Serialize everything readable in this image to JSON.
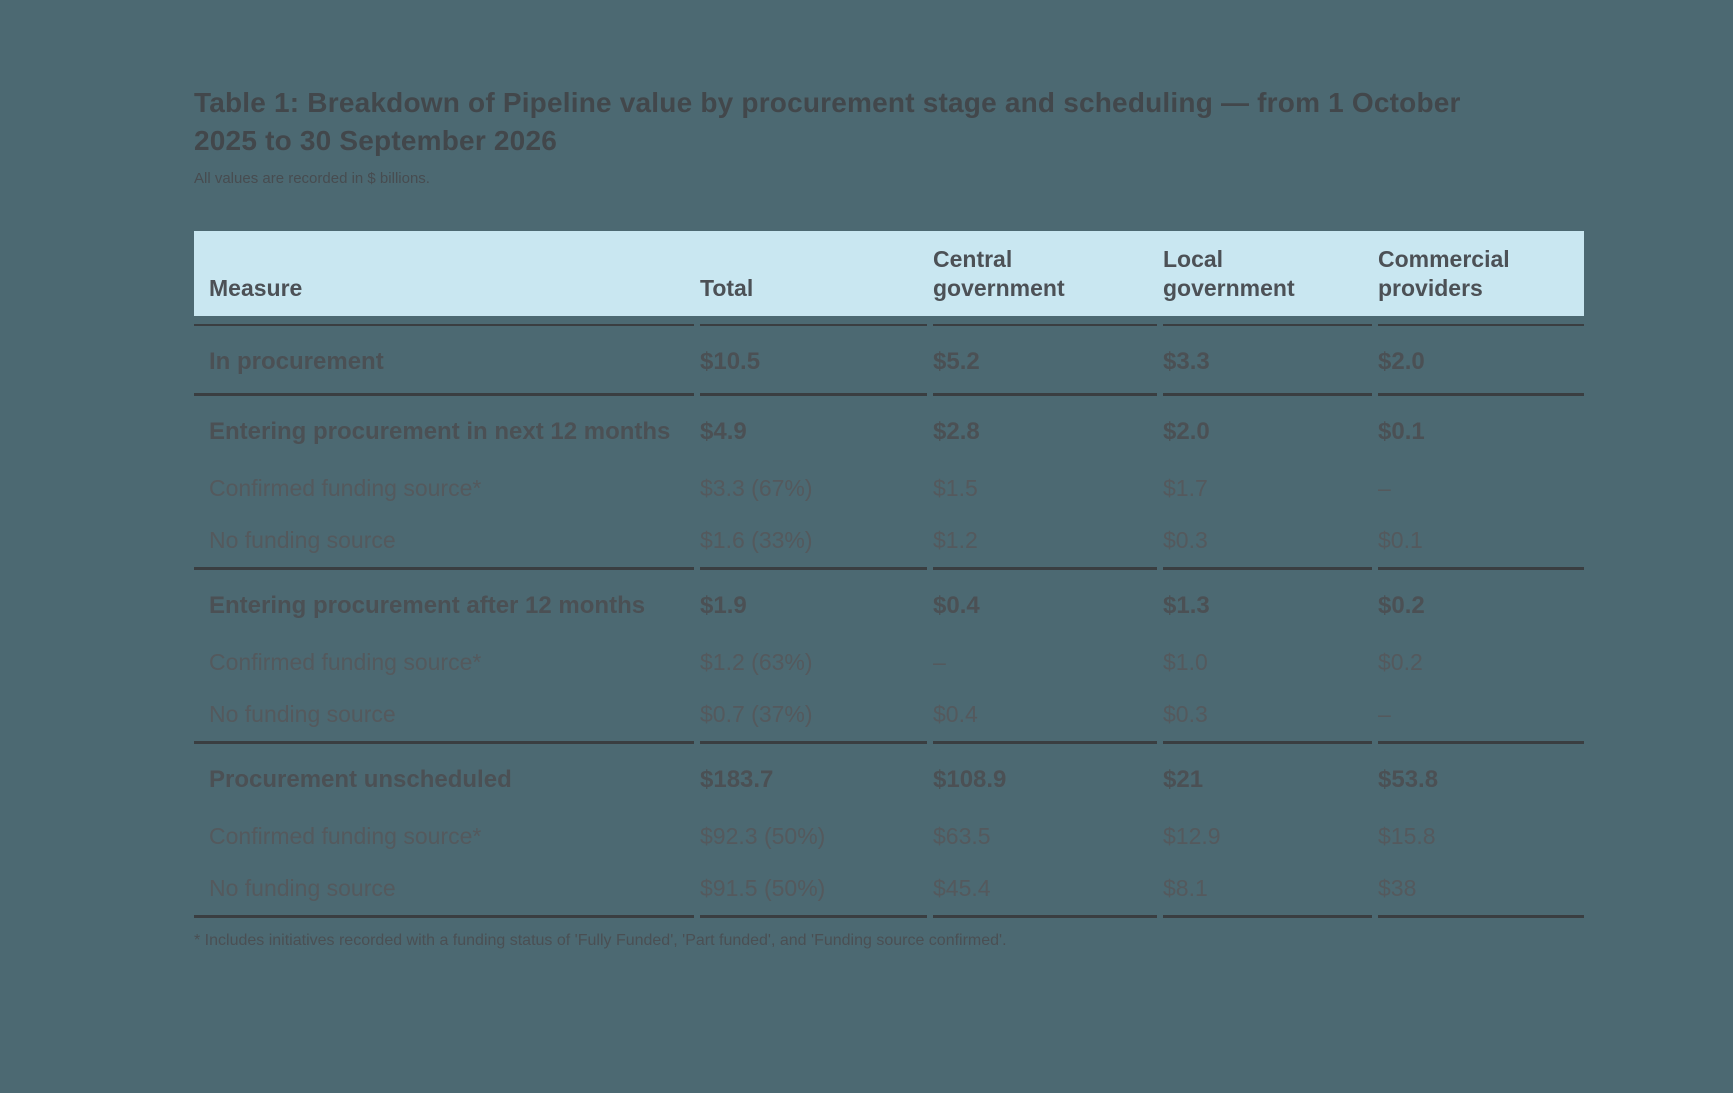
{
  "page": {
    "title": "Table 1: Breakdown of Pipeline value by procurement stage and scheduling — from 1 October 2025 to 30 September 2026",
    "subtitle": "All values are recorded in $ billions.",
    "footnote": "* Includes initiatives recorded with a funding status of 'Fully Funded', 'Part funded', and 'Funding source confirmed'.",
    "colors": {
      "background": "#4C6972",
      "header_background": "#C9E7F1",
      "rule": "#3A3E41",
      "title_text": "#42474B",
      "bold_row_text": "#4B5054",
      "sub_row_text": "#54595D"
    }
  },
  "table": {
    "columns": [
      "Measure",
      "Total",
      "Central government",
      "Local government",
      "Commercial providers"
    ],
    "sections": [
      {
        "rows": [
          {
            "label": "In procurement",
            "bold": true,
            "values": [
              "$10.5",
              "$5.2",
              "$3.3",
              "$2.0"
            ]
          }
        ]
      },
      {
        "rows": [
          {
            "label": "Entering procurement in next 12 months",
            "bold": true,
            "values": [
              "$4.9",
              "$2.8",
              "$2.0",
              "$0.1"
            ]
          },
          {
            "label": "Confirmed funding source*",
            "bold": false,
            "values": [
              "$3.3 (67%)",
              "$1.5",
              "$1.7",
              "–"
            ]
          },
          {
            "label": "No funding source",
            "bold": false,
            "values": [
              "$1.6 (33%)",
              "$1.2",
              "$0.3",
              "$0.1"
            ]
          }
        ]
      },
      {
        "rows": [
          {
            "label": "Entering procurement after 12 months",
            "bold": true,
            "values": [
              "$1.9",
              "$0.4",
              "$1.3",
              "$0.2"
            ]
          },
          {
            "label": "Confirmed funding source*",
            "bold": false,
            "values": [
              "$1.2 (63%)",
              "–",
              "$1.0",
              "$0.2"
            ]
          },
          {
            "label": "No funding source",
            "bold": false,
            "values": [
              "$0.7 (37%)",
              "$0.4",
              "$0.3",
              "–"
            ]
          }
        ]
      },
      {
        "rows": [
          {
            "label": "Procurement unscheduled",
            "bold": true,
            "values": [
              "$183.7",
              "$108.9",
              "$21",
              "$53.8"
            ]
          },
          {
            "label": "Confirmed funding source*",
            "bold": false,
            "values": [
              "$92.3 (50%)",
              "$63.5",
              "$12.9",
              "$15.8"
            ]
          },
          {
            "label": "No funding source",
            "bold": false,
            "values": [
              "$91.5 (50%)",
              "$45.4",
              "$8.1",
              "$38"
            ]
          }
        ]
      }
    ]
  },
  "chart_data": {
    "type": "table",
    "title": "Table 1: Breakdown of Pipeline value by procurement stage and scheduling — from 1 October 2025 to 30 September 2026",
    "units": "$ billions",
    "columns": [
      "Measure",
      "Total",
      "Central government",
      "Local government",
      "Commercial providers"
    ],
    "rows": [
      [
        "In procurement",
        "$10.5",
        "$5.2",
        "$3.3",
        "$2.0"
      ],
      [
        "Entering procurement in next 12 months",
        "$4.9",
        "$2.8",
        "$2.0",
        "$0.1"
      ],
      [
        "Confirmed funding source*",
        "$3.3 (67%)",
        "$1.5",
        "$1.7",
        "–"
      ],
      [
        "No funding source",
        "$1.6 (33%)",
        "$1.2",
        "$0.3",
        "$0.1"
      ],
      [
        "Entering procurement after 12 months",
        "$1.9",
        "$0.4",
        "$1.3",
        "$0.2"
      ],
      [
        "Confirmed funding source*",
        "$1.2 (63%)",
        "–",
        "$1.0",
        "$0.2"
      ],
      [
        "No funding source",
        "$0.7 (37%)",
        "$0.4",
        "$0.3",
        "–"
      ],
      [
        "Procurement unscheduled",
        "$183.7",
        "$108.9",
        "$21",
        "$53.8"
      ],
      [
        "Confirmed funding source*",
        "$92.3 (50%)",
        "$63.5",
        "$12.9",
        "$15.8"
      ],
      [
        "No funding source",
        "$91.5 (50%)",
        "$45.4",
        "$8.1",
        "$38"
      ]
    ]
  }
}
